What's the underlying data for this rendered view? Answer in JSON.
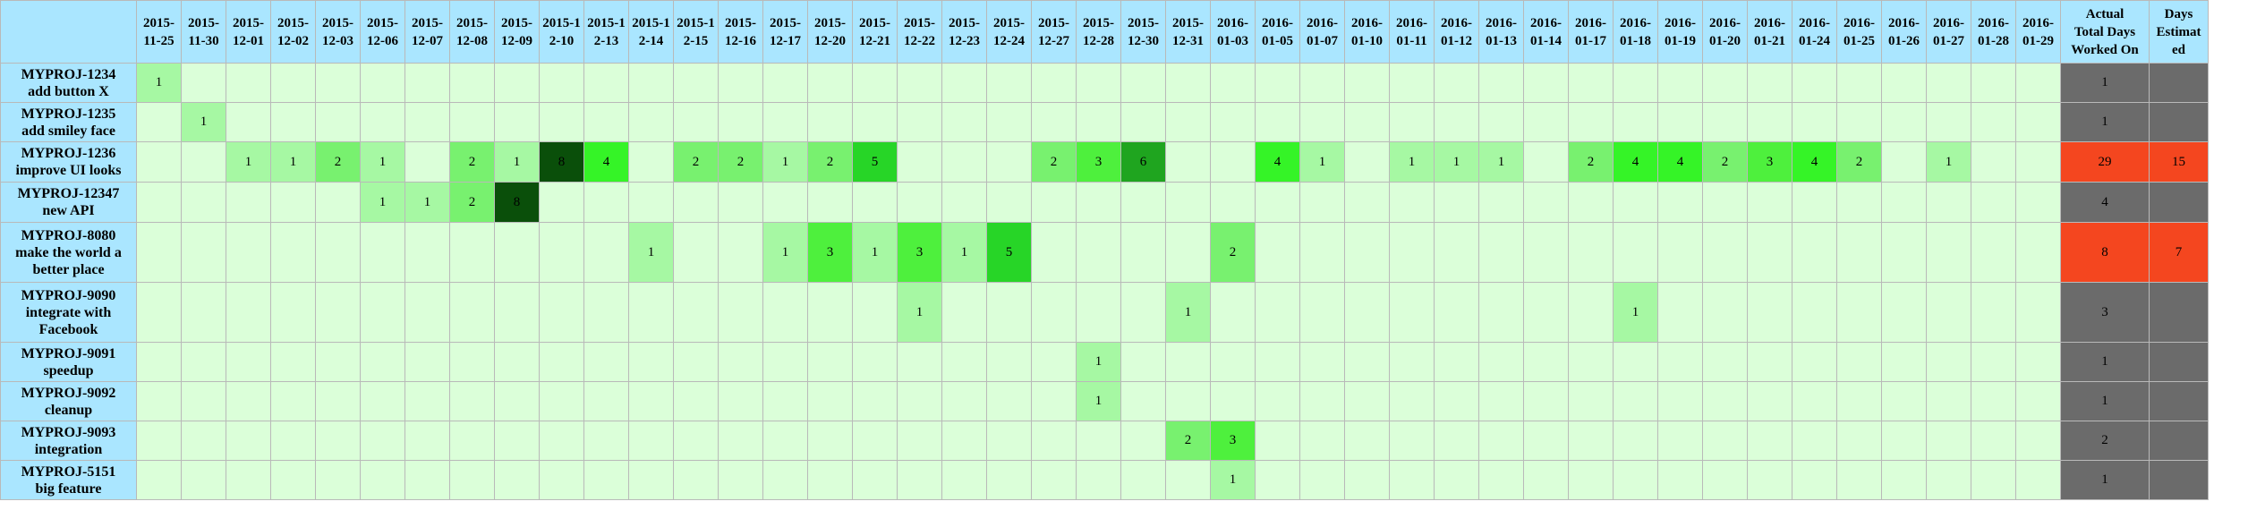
{
  "dates": [
    "2015-11-25",
    "2015-11-30",
    "2015-12-01",
    "2015-12-02",
    "2015-12-03",
    "2015-12-06",
    "2015-12-07",
    "2015-12-08",
    "2015-12-09",
    "2015-12-10",
    "2015-12-13",
    "2015-12-14",
    "2015-12-15",
    "2015-12-16",
    "2015-12-17",
    "2015-12-20",
    "2015-12-21",
    "2015-12-22",
    "2015-12-23",
    "2015-12-24",
    "2015-12-27",
    "2015-12-28",
    "2015-12-30",
    "2015-12-31",
    "2016-01-03",
    "2016-01-05",
    "2016-01-07",
    "2016-01-10",
    "2016-01-11",
    "2016-01-12",
    "2016-01-13",
    "2016-01-14",
    "2016-01-17",
    "2016-01-18",
    "2016-01-19",
    "2016-01-20",
    "2016-01-21",
    "2016-01-24",
    "2016-01-25",
    "2016-01-26",
    "2016-01-27",
    "2016-01-28",
    "2016-01-29"
  ],
  "date_header_lines": [
    [
      "2015-",
      "11-25"
    ],
    [
      "2015-",
      "11-30"
    ],
    [
      "2015-",
      "12-01"
    ],
    [
      "2015-",
      "12-02"
    ],
    [
      "2015-",
      "12-03"
    ],
    [
      "2015-",
      "12-06"
    ],
    [
      "2015-",
      "12-07"
    ],
    [
      "2015-",
      "12-08"
    ],
    [
      "2015-",
      "12-09"
    ],
    [
      "2015-1",
      "2-10"
    ],
    [
      "2015-1",
      "2-13"
    ],
    [
      "2015-1",
      "2-14"
    ],
    [
      "2015-1",
      "2-15"
    ],
    [
      "2015-",
      "12-16"
    ],
    [
      "2015-",
      "12-17"
    ],
    [
      "2015-",
      "12-20"
    ],
    [
      "2015-",
      "12-21"
    ],
    [
      "2015-",
      "12-22"
    ],
    [
      "2015-",
      "12-23"
    ],
    [
      "2015-",
      "12-24"
    ],
    [
      "2015-",
      "12-27"
    ],
    [
      "2015-",
      "12-28"
    ],
    [
      "2015-",
      "12-30"
    ],
    [
      "2015-",
      "12-31"
    ],
    [
      "2016-",
      "01-03"
    ],
    [
      "2016-",
      "01-05"
    ],
    [
      "2016-",
      "01-07"
    ],
    [
      "2016-",
      "01-10"
    ],
    [
      "2016-",
      "01-11"
    ],
    [
      "2016-",
      "01-12"
    ],
    [
      "2016-",
      "01-13"
    ],
    [
      "2016-",
      "01-14"
    ],
    [
      "2016-",
      "01-17"
    ],
    [
      "2016-",
      "01-18"
    ],
    [
      "2016-",
      "01-19"
    ],
    [
      "2016-",
      "01-20"
    ],
    [
      "2016-",
      "01-21"
    ],
    [
      "2016-",
      "01-24"
    ],
    [
      "2016-",
      "01-25"
    ],
    [
      "2016-",
      "01-26"
    ],
    [
      "2016-",
      "01-27"
    ],
    [
      "2016-",
      "01-28"
    ],
    [
      "2016-",
      "01-29"
    ]
  ],
  "total_header_lines": [
    "Actual",
    "Total Days",
    "Worked On"
  ],
  "estimate_header_lines": [
    "Days",
    "Estimat",
    "ed"
  ],
  "colors": {
    "header_bg": "#aae6ff",
    "empty_cell": "#dbffd9",
    "total_cell": "#6b6b6b",
    "over_estimate": "#f4461f",
    "level_1": "#a6f8a3",
    "level_2": "#78f16f",
    "level_3": "#4ef03d",
    "level_4": "#35f427",
    "level_5": "#27d527",
    "level_6": "#1fa51f",
    "level_8": "#0a4f0a"
  },
  "tasks": [
    {
      "id_line": "MYPROJ-1234",
      "desc_lines": [
        "add button X"
      ],
      "cells": {
        "0": 1
      },
      "total": "1",
      "estimate": "",
      "over": false
    },
    {
      "id_line": "MYPROJ-1235",
      "desc_lines": [
        "add smiley face"
      ],
      "cells": {
        "1": 1
      },
      "total": "1",
      "estimate": "",
      "over": false
    },
    {
      "id_line": "MYPROJ-1236",
      "desc_lines": [
        "improve UI looks"
      ],
      "cells": {
        "2": 1,
        "3": 1,
        "4": 2,
        "5": 1,
        "7": 2,
        "8": 1,
        "9": 8,
        "10": 4,
        "12": 2,
        "13": 2,
        "14": 1,
        "15": 2,
        "16": 5,
        "20": 2,
        "21": 3,
        "22": 6,
        "25": 4,
        "26": 1,
        "28": 1,
        "29": 1,
        "30": 1,
        "32": 2,
        "33": 4,
        "34": 4,
        "35": 2,
        "36": 3,
        "37": 4,
        "38": 2,
        "40": 1
      },
      "total": "29",
      "estimate": "15",
      "over": true
    },
    {
      "id_line": "MYPROJ-12347",
      "desc_lines": [
        "new API"
      ],
      "cells": {
        "5": 1,
        "6": 1,
        "7": 2,
        "8": 8
      },
      "total": "4",
      "estimate": "",
      "over": false
    },
    {
      "id_line": "MYPROJ-8080",
      "desc_lines": [
        "make the world a",
        "better place"
      ],
      "cells": {
        "11": 1,
        "14": 1,
        "15": 3,
        "16": 1,
        "17": 3,
        "18": 1,
        "19": 5,
        "24": 2
      },
      "total": "8",
      "estimate": "7",
      "over": true
    },
    {
      "id_line": "MYPROJ-9090",
      "desc_lines": [
        "integrate with",
        "Facebook"
      ],
      "cells": {
        "17": 1,
        "23": 1,
        "33": 1
      },
      "total": "3",
      "estimate": "",
      "over": false
    },
    {
      "id_line": "MYPROJ-9091",
      "desc_lines": [
        "speedup"
      ],
      "cells": {
        "21": 1
      },
      "total": "1",
      "estimate": "",
      "over": false
    },
    {
      "id_line": "MYPROJ-9092",
      "desc_lines": [
        "cleanup"
      ],
      "cells": {
        "21": 1
      },
      "total": "1",
      "estimate": "",
      "over": false
    },
    {
      "id_line": "MYPROJ-9093",
      "desc_lines": [
        "integration"
      ],
      "cells": {
        "23": 2,
        "24": 3
      },
      "total": "2",
      "estimate": "",
      "over": false
    },
    {
      "id_line": "MYPROJ-5151",
      "desc_lines": [
        "big feature"
      ],
      "cells": {
        "24": 1
      },
      "total": "1",
      "estimate": "",
      "over": false
    }
  ]
}
